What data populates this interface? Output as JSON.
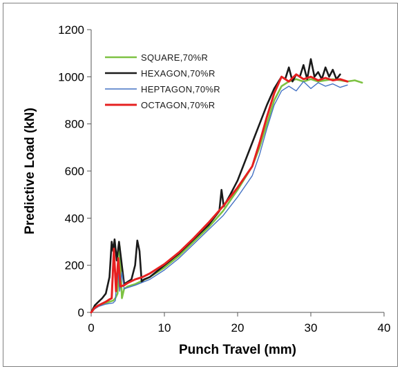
{
  "chart_data": {
    "type": "line",
    "title": "",
    "xlabel": "Punch Travel (mm)",
    "ylabel": "Predictive Load (kN)",
    "xlim": [
      0,
      40
    ],
    "ylim": [
      0,
      1200
    ],
    "xticks": [
      "0",
      "10",
      "20",
      "30",
      "40"
    ],
    "yticks": [
      "0",
      "200",
      "400",
      "600",
      "800",
      "1000",
      "1200"
    ],
    "grid": false,
    "legend_position": "top-left",
    "series": [
      {
        "name": "SQUARE,70%R",
        "color": "#7dc242",
        "x": [
          0,
          0.5,
          1,
          2,
          3,
          3.3,
          3.6,
          3.9,
          4.2,
          4.5,
          5,
          6,
          7,
          8,
          10,
          12,
          14,
          16,
          18,
          20,
          22,
          23,
          24,
          25,
          26,
          27,
          28,
          29,
          30,
          31,
          32,
          33,
          34,
          35,
          36,
          37
        ],
        "y": [
          0,
          20,
          30,
          40,
          50,
          60,
          80,
          280,
          60,
          100,
          110,
          120,
          135,
          150,
          190,
          240,
          300,
          360,
          430,
          520,
          620,
          700,
          800,
          900,
          960,
          980,
          990,
          980,
          990,
          980,
          985,
          990,
          985,
          980,
          985,
          975
        ]
      },
      {
        "name": "HEXAGON,70%R",
        "color": "#1a1a1a",
        "x": [
          0,
          0.5,
          1,
          1.5,
          2,
          2.5,
          2.8,
          3.0,
          3.2,
          3.5,
          3.8,
          4.0,
          4.5,
          5,
          5.5,
          6,
          6.3,
          6.6,
          6.9,
          7.2,
          8,
          10,
          12,
          14,
          16,
          17.5,
          17.8,
          18.1,
          19,
          20,
          21,
          22,
          23,
          24,
          25,
          26,
          26.5,
          27,
          27.5,
          28,
          28.5,
          29,
          29.5,
          30,
          30.5,
          31,
          31.5,
          32,
          32.5,
          33,
          33.5,
          34
        ],
        "y": [
          0,
          30,
          45,
          60,
          80,
          150,
          300,
          260,
          310,
          220,
          300,
          250,
          120,
          130,
          140,
          200,
          305,
          260,
          130,
          140,
          150,
          200,
          250,
          310,
          370,
          430,
          520,
          450,
          500,
          560,
          640,
          720,
          800,
          880,
          950,
          1000,
          990,
          1040,
          980,
          1010,
          1000,
          1050,
          990,
          1075,
          1000,
          1020,
          990,
          1040,
          1000,
          1030,
          990,
          1010
        ]
      },
      {
        "name": "HEPTAGON,70%R",
        "color": "#4472c4",
        "x": [
          0,
          0.5,
          1,
          2,
          3,
          3.3,
          3.6,
          3.9,
          4.2,
          4.5,
          5,
          6,
          8,
          10,
          12,
          14,
          16,
          18,
          20,
          22,
          23,
          24,
          25,
          26,
          27,
          28,
          29,
          30,
          31,
          32,
          33,
          34,
          35
        ],
        "y": [
          0,
          15,
          25,
          35,
          40,
          50,
          200,
          90,
          170,
          100,
          105,
          115,
          140,
          180,
          230,
          290,
          350,
          410,
          490,
          580,
          670,
          780,
          880,
          940,
          960,
          940,
          980,
          950,
          975,
          960,
          970,
          955,
          965
        ]
      },
      {
        "name": "OCTAGON,70%R",
        "color": "#e62020",
        "x": [
          0,
          0.5,
          1,
          2,
          2.5,
          2.8,
          3.1,
          3.4,
          3.7,
          4.0,
          4.5,
          5,
          6,
          7,
          8,
          10,
          12,
          14,
          16,
          18,
          20,
          22,
          23,
          24,
          25,
          26,
          27,
          28,
          29,
          30,
          31,
          32,
          33,
          34,
          35
        ],
        "y": [
          0,
          20,
          30,
          45,
          55,
          60,
          270,
          90,
          230,
          110,
          115,
          125,
          140,
          150,
          165,
          205,
          255,
          315,
          380,
          450,
          530,
          620,
          720,
          830,
          930,
          1000,
          980,
          1010,
          990,
          1000,
          985,
          995,
          985,
          990,
          980
        ]
      }
    ]
  }
}
